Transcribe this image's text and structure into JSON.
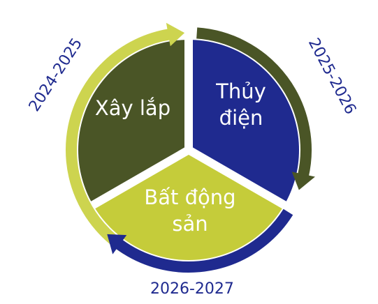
{
  "segments": [
    {
      "label": "Xây lắp"
    },
    {
      "label": "Thủy điện"
    },
    {
      "label": "Bất động sản"
    }
  ],
  "periods": [
    "2024-2025",
    "2025-2026",
    "2026-2027"
  ]
}
